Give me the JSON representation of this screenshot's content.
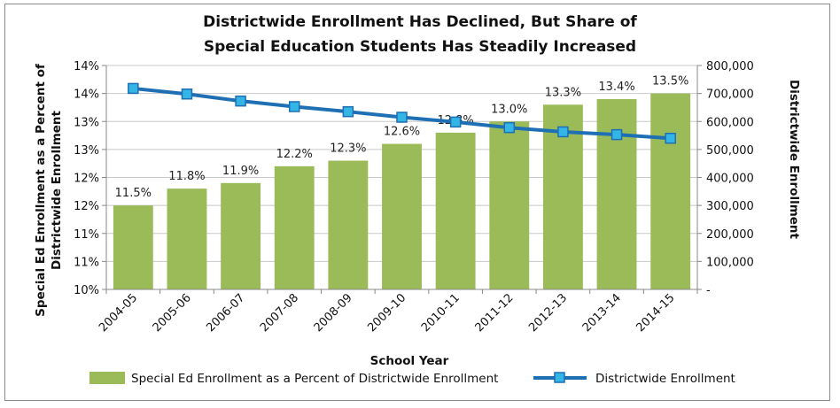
{
  "chart_data": {
    "type": "bar+line",
    "title_lines": [
      "Districtwide Enrollment Has Declined, But Share of",
      "Special Education Students Has Steadily Increased"
    ],
    "xlabel": "School Year",
    "ylabel_left_lines": [
      "Special Ed Enrollment as a Percent of",
      "Districtwide Enrollment"
    ],
    "ylabel_right": "Districtwide Enrollment",
    "categories": [
      "2004-05",
      "2005-06",
      "2006-07",
      "2007-08",
      "2008-09",
      "2009-10",
      "2010-11",
      "2011-12",
      "2012-13",
      "2013-14",
      "2014-15"
    ],
    "left_ticks": [
      "10%",
      "11%",
      "11%",
      "12%",
      "12%",
      "13%",
      "13%",
      "14%",
      "14%"
    ],
    "right_ticks": [
      "-",
      "100,000",
      "200,000",
      "300,000",
      "400,000",
      "500,000",
      "600,000",
      "700,000",
      "800,000"
    ],
    "ylim_left": [
      10,
      14
    ],
    "ylim_right": [
      0,
      800000
    ],
    "series": [
      {
        "name": "Special Ed Enrollment as a Percent of Districtwide Enrollment",
        "type": "bar",
        "axis": "left",
        "color": "#9bbb59",
        "values": [
          11.5,
          11.8,
          11.9,
          12.2,
          12.3,
          12.6,
          12.8,
          13.0,
          13.3,
          13.4,
          13.5
        ],
        "labels": [
          "11.5%",
          "11.8%",
          "11.9%",
          "12.2%",
          "12.3%",
          "12.6%",
          "12.8%",
          "13.0%",
          "13.3%",
          "13.4%",
          "13.5%"
        ]
      },
      {
        "name": "Districtwide Enrollment",
        "type": "line",
        "axis": "right",
        "color": "#1f6fb4",
        "marker_color": "#33b5e5",
        "values": [
          718000,
          698000,
          673000,
          653000,
          635000,
          615000,
          598000,
          578000,
          563000,
          553000,
          540000
        ]
      }
    ],
    "grid": true,
    "legend_position": "bottom"
  }
}
